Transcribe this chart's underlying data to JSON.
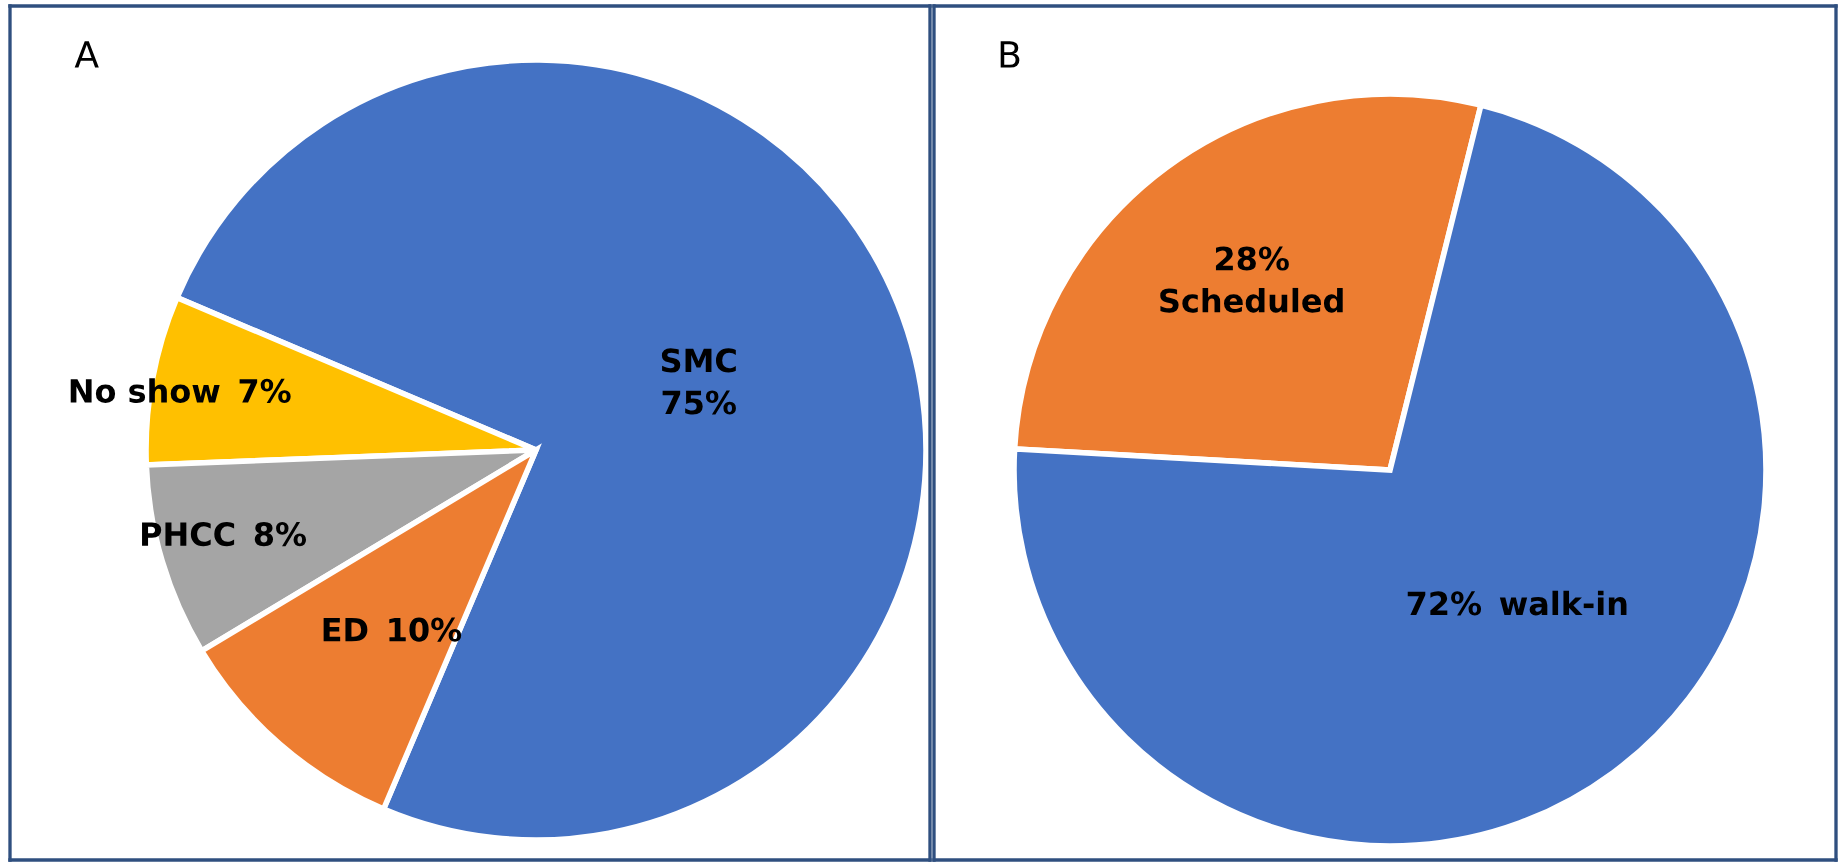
{
  "chart_data": [
    {
      "type": "pie",
      "title": "A",
      "categories": [
        "SMC",
        "No show",
        "PHCC",
        "ED"
      ],
      "values": [
        75,
        7,
        8,
        10
      ],
      "colors": [
        "#4472c4",
        "#ffc000",
        "#a5a5a5",
        "#ed7d31"
      ],
      "value_labels": [
        "75%",
        "7%",
        "8%",
        "10%"
      ],
      "legend": false
    },
    {
      "type": "pie",
      "title": "B",
      "categories": [
        "Scheduled",
        "walk-in"
      ],
      "values": [
        28,
        72
      ],
      "colors": [
        "#ed7d31",
        "#4472c4"
      ],
      "value_labels": [
        "28%",
        "72%"
      ],
      "legend": false
    }
  ]
}
